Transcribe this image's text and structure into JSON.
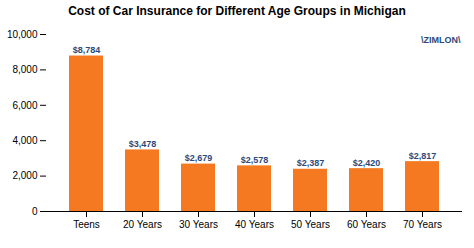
{
  "chart_data": {
    "type": "bar",
    "title": "Cost of Car Insurance for Different Age Groups in Michigan",
    "categories": [
      "Teens",
      "20 Years",
      "30 Years",
      "40 Years",
      "50 Years",
      "60 Years",
      "70 Years"
    ],
    "values": [
      8784,
      3478,
      2679,
      2578,
      2387,
      2420,
      2817
    ],
    "value_labels": [
      "$8,784",
      "$3,478",
      "$2,679",
      "$2,578",
      "$2,387",
      "$2,420",
      "$2,817"
    ],
    "data_labels": true,
    "color": "#f47920",
    "ylim": [
      0,
      10000
    ],
    "yticks": [
      0,
      {
        "value": 2000,
        "label": "2,000"
      },
      {
        "value": 4000,
        "label": "4,000"
      },
      {
        "value": 6000,
        "label": "6,000"
      },
      {
        "value": 8000,
        "label": "8,000"
      },
      {
        "value": 10000,
        "label": "10,000"
      }
    ],
    "grid": false,
    "annotations": [
      "\\ZIMLON\\"
    ]
  }
}
